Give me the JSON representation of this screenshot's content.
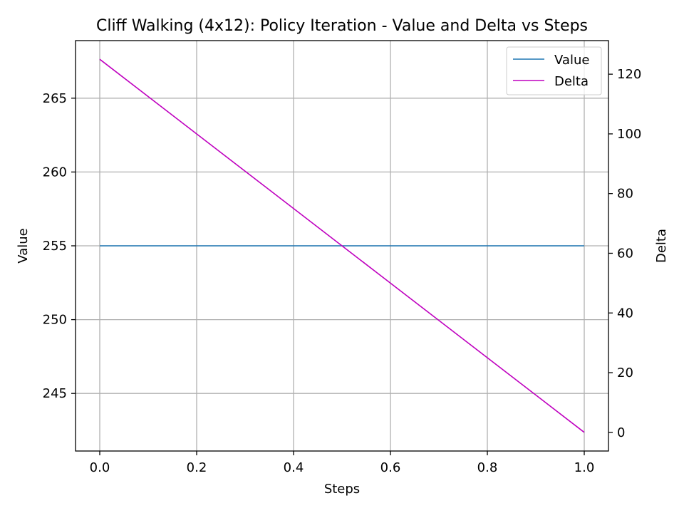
{
  "chart_data": {
    "type": "line",
    "title": "Cliff Walking (4x12): Policy Iteration - Value and Delta vs Steps",
    "xlabel": "Steps",
    "ylabel": "Value",
    "y2label": "Delta",
    "xlim": [
      -0.05,
      1.05
    ],
    "ylim": [
      241.1,
      268.9
    ],
    "y2lim": [
      -6.25,
      131.25
    ],
    "xticks": [
      0.0,
      0.2,
      0.4,
      0.6,
      0.8,
      1.0
    ],
    "xtick_labels": [
      "0.0",
      "0.2",
      "0.4",
      "0.6",
      "0.8",
      "1.0"
    ],
    "yticks": [
      245,
      250,
      255,
      260,
      265
    ],
    "ytick_labels": [
      "245",
      "250",
      "255",
      "260",
      "265"
    ],
    "y2ticks": [
      0,
      20,
      40,
      60,
      80,
      100,
      120
    ],
    "y2tick_labels": [
      "0",
      "20",
      "40",
      "60",
      "80",
      "100",
      "120"
    ],
    "grid": true,
    "legend_position": "top-right",
    "series": [
      {
        "name": "Value",
        "axis": "left",
        "color": "#1f77b4",
        "x": [
          0.0,
          1.0
        ],
        "y": [
          255.0,
          255.0
        ]
      },
      {
        "name": "Delta",
        "axis": "right",
        "color": "#bf00bf",
        "x": [
          0.0,
          1.0
        ],
        "y": [
          125.0,
          0.0
        ]
      }
    ]
  }
}
